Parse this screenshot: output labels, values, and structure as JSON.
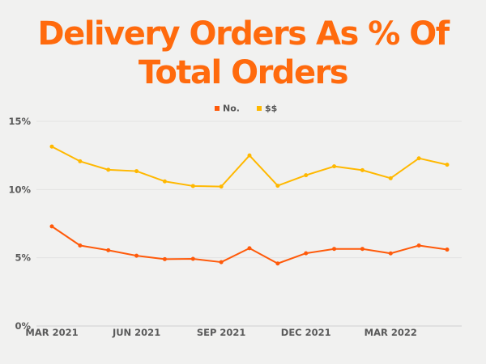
{
  "chart_data": {
    "type": "line",
    "title": "Delivery Orders As % Of Total Orders",
    "x": [
      "Mar 2021",
      "Apr 2021",
      "May 2021",
      "Jun 2021",
      "Jul 2021",
      "Aug 2021",
      "Sep 2021",
      "Oct 2021",
      "Nov 2021",
      "Dec 2021",
      "Jan 2022",
      "Feb 2022",
      "Mar 2022",
      "Apr 2022",
      "May 2022"
    ],
    "x_tick_labels": [
      {
        "index": 0,
        "label": "MAR 2021"
      },
      {
        "index": 3,
        "label": "JUN 2021"
      },
      {
        "index": 6,
        "label": "SEP 2021"
      },
      {
        "index": 9,
        "label": "DEC 2021"
      },
      {
        "index": 12,
        "label": "MAR 2022"
      }
    ],
    "y_ticks": [
      {
        "value": 0,
        "label": "0%"
      },
      {
        "value": 5,
        "label": "5%"
      },
      {
        "value": 10,
        "label": "10%"
      },
      {
        "value": 15,
        "label": "15%"
      }
    ],
    "ylim": [
      0,
      15
    ],
    "grid": true,
    "legend_placement": "top-center",
    "series": [
      {
        "name": "No.",
        "color": "#ff5a0a",
        "values": [
          7.3,
          5.9,
          5.55,
          5.15,
          4.9,
          4.92,
          4.68,
          5.7,
          4.58,
          5.33,
          5.65,
          5.65,
          5.32,
          5.9,
          5.6
        ]
      },
      {
        "name": "$$",
        "color": "#ffb800",
        "values": [
          13.15,
          12.07,
          11.45,
          11.35,
          10.6,
          10.26,
          10.22,
          12.5,
          10.28,
          11.05,
          11.7,
          11.42,
          10.83,
          12.29,
          11.82
        ]
      }
    ]
  }
}
